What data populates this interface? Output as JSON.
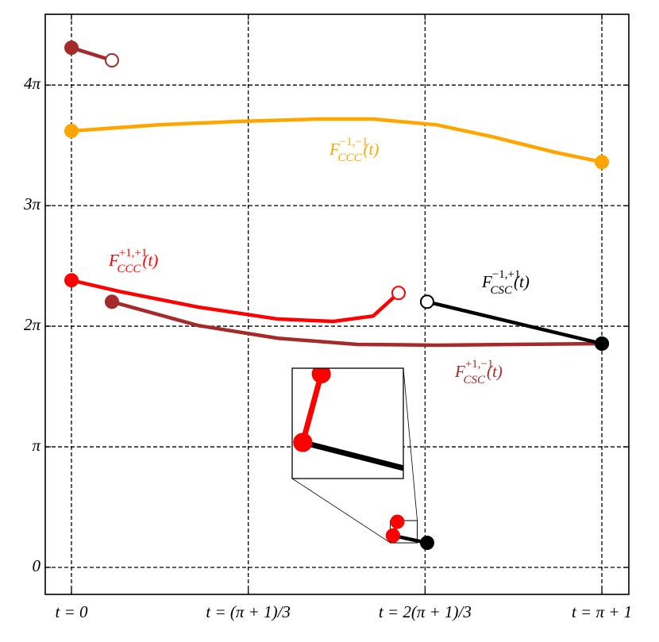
{
  "chart_data": {
    "type": "line",
    "xlim": [
      -0.2046,
      4.352
    ],
    "ylim": [
      -0.703,
      14.41
    ],
    "xticks": [
      {
        "value": 0,
        "label": "t = 0"
      },
      {
        "value": 1.3805,
        "label": "t = (π + 1)/3"
      },
      {
        "value": 2.7611,
        "label": "t = 2(π + 1)/3"
      },
      {
        "value": 4.1416,
        "label": "t = π + 1"
      }
    ],
    "yticks": [
      0,
      {
        "value": 3.1416,
        "label": "π"
      },
      {
        "value": 6.2832,
        "label": "2π"
      },
      {
        "value": 9.4248,
        "label": "3π"
      },
      {
        "value": 12.566,
        "label": "4π"
      }
    ],
    "grid": true,
    "series": [
      {
        "color": "#a52a2a",
        "x": [
          0,
          0.316
        ],
        "values": [
          13.54,
          13.21
        ],
        "marker_start": "filled",
        "marker_end": "open"
      },
      {
        "color": "#ffa500",
        "x": [
          0,
          0.682,
          1.302,
          1.922,
          2.356,
          2.852,
          3.286,
          3.782,
          4.1416
        ],
        "values": [
          11.37,
          11.53,
          11.62,
          11.68,
          11.68,
          11.53,
          11.22,
          10.81,
          10.56
        ],
        "marker_start": "filled",
        "marker_end": "filled"
      },
      {
        "color": "#ff0000",
        "x": [
          0,
          0.372,
          0.992,
          1.612,
          2.046,
          2.356,
          2.554
        ],
        "values": [
          7.48,
          7.19,
          6.78,
          6.47,
          6.41,
          6.55,
          7.15
        ],
        "marker_start": "filled",
        "marker_end": "open"
      },
      {
        "color": "#a52a2a",
        "x": [
          0.316,
          0.992,
          1.612,
          2.232,
          2.852,
          3.472,
          4.1416
        ],
        "values": [
          6.92,
          6.3,
          5.97,
          5.81,
          5.79,
          5.81,
          5.83
        ],
        "marker_start": "filled",
        "marker_end": "filled"
      },
      {
        "color": "#000000",
        "x": [
          2.777,
          4.1416
        ],
        "values": [
          6.92,
          5.83
        ],
        "marker_start": "open",
        "marker_end": "filled"
      },
      {
        "color": "#000000",
        "x": [
          2.51,
          2.777
        ],
        "values": [
          0.83,
          0.64
        ],
        "marker_start": "filled",
        "marker_end": "filled",
        "inset": true
      },
      {
        "color": "#ff0000",
        "x": [
          2.51,
          2.545
        ],
        "values": [
          0.83,
          1.19
        ],
        "marker_start": "filled",
        "marker_end": "filled",
        "inset": true
      }
    ],
    "inset": {
      "xlim": [
        2.49,
        2.7
      ],
      "ylim": [
        0.64,
        1.22
      ]
    },
    "annotations": [
      {
        "color": "#ffa500",
        "base": "F",
        "sup": "−1,−1",
        "sub": "CCC",
        "arg": "(t)"
      },
      {
        "color": "#ff0000",
        "base": "F",
        "sup": "+1,+1",
        "sub": "CCC",
        "arg": "(t)"
      },
      {
        "color": "#000000",
        "base": "F",
        "sup": "−1,+1",
        "sub": "CSC",
        "arg": "(t)"
      },
      {
        "color": "#a52a2a",
        "base": "F",
        "sup": "+1,−1",
        "sub": "CSC",
        "arg": "(t)"
      }
    ]
  }
}
